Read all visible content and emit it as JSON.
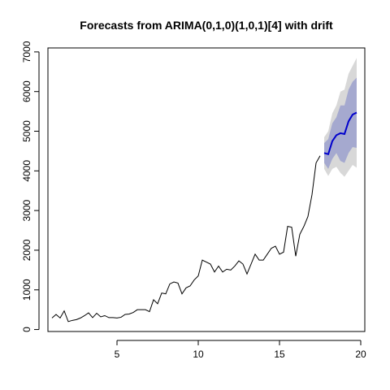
{
  "chart_data": {
    "type": "line",
    "title": "Forecasts from ARIMA(0,1,0)(1,0,1)[4] with drift",
    "xlabel": "",
    "ylabel": "",
    "xlim": [
      0.75,
      20.25
    ],
    "ylim": [
      -50,
      7100
    ],
    "x_ticks": [
      5,
      10,
      15,
      20
    ],
    "y_ticks": [
      0,
      1000,
      2000,
      3000,
      4000,
      5000,
      6000,
      7000
    ],
    "grid": false,
    "legend": "none",
    "colors": {
      "history": "#000000",
      "forecast": "#0000cc",
      "band_inner": "#a5a9cf",
      "band_outer": "#d8d8d8"
    },
    "history": {
      "x": [
        1.0,
        1.25,
        1.5,
        1.75,
        2.0,
        2.25,
        2.5,
        2.75,
        3.0,
        3.25,
        3.5,
        3.75,
        4.0,
        4.25,
        4.5,
        4.75,
        5.0,
        5.25,
        5.5,
        5.75,
        6.0,
        6.25,
        6.5,
        6.75,
        7.0,
        7.25,
        7.5,
        7.75,
        8.0,
        8.25,
        8.5,
        8.75,
        9.0,
        9.25,
        9.5,
        9.75,
        10.0,
        10.25,
        10.5,
        10.75,
        11.0,
        11.25,
        11.5,
        11.75,
        12.0,
        12.25,
        12.5,
        12.75,
        13.0,
        13.25,
        13.5,
        13.75,
        14.0,
        14.25,
        14.5,
        14.75,
        15.0,
        15.25,
        15.5,
        15.75,
        16.0,
        16.25,
        16.5,
        16.75,
        17.0,
        17.25,
        17.5
      ],
      "y": [
        290,
        380,
        290,
        470,
        200,
        230,
        250,
        290,
        350,
        420,
        300,
        410,
        320,
        350,
        300,
        300,
        290,
        310,
        380,
        390,
        430,
        500,
        500,
        500,
        450,
        750,
        650,
        920,
        900,
        1150,
        1200,
        1170,
        900,
        1050,
        1100,
        1250,
        1350,
        1750,
        1700,
        1650,
        1450,
        1600,
        1450,
        1520,
        1500,
        1600,
        1730,
        1650,
        1400,
        1650,
        1900,
        1750,
        1750,
        1900,
        2050,
        2100,
        1900,
        1950,
        2600,
        2580,
        1850,
        2400,
        2600,
        2850,
        3400,
        4200,
        4380
      ]
    },
    "forecast": {
      "x": [
        17.75,
        18.0,
        18.25,
        18.5,
        18.75,
        19.0,
        19.25,
        19.5,
        19.75
      ],
      "mean": [
        4450,
        4420,
        4750,
        4900,
        4950,
        4930,
        5250,
        5420,
        5470
      ],
      "lo80": [
        4200,
        4050,
        4300,
        4450,
        4250,
        4200,
        4450,
        4600,
        4580
      ],
      "hi80": [
        4700,
        4800,
        5200,
        5350,
        5650,
        5650,
        6050,
        6250,
        6350
      ],
      "lo95": [
        4050,
        3870,
        4050,
        4100,
        3950,
        3850,
        4000,
        4150,
        4080
      ],
      "hi95": [
        4850,
        5000,
        5450,
        5650,
        6000,
        6050,
        6450,
        6650,
        6850
      ]
    }
  }
}
